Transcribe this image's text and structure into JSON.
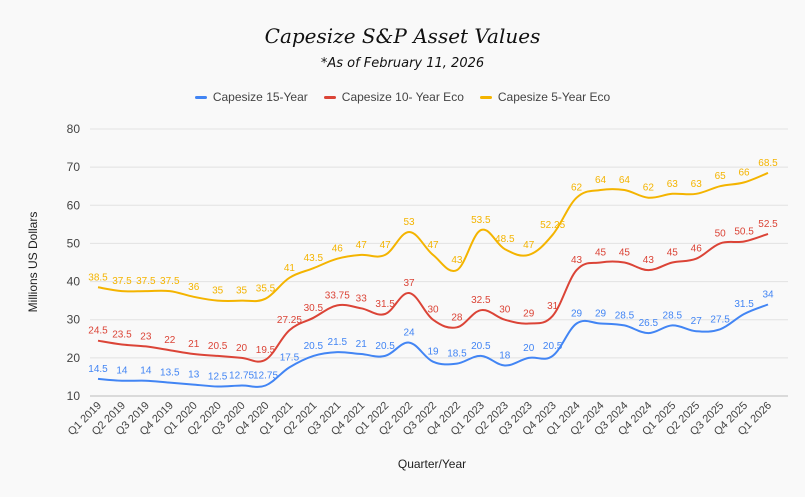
{
  "chart_data": {
    "type": "line",
    "title": "Capesize S&P Asset Values",
    "subtitle": "*As of February 11, 2026",
    "xlabel": "Quarter/Year",
    "ylabel": "Millions US Dollars",
    "ylim": [
      10,
      80
    ],
    "yticks": [
      10,
      20,
      30,
      40,
      50,
      60,
      70,
      80
    ],
    "grid": true,
    "legend": "top-center",
    "categories": [
      "Q1 2019",
      "Q2 2019",
      "Q3 2019",
      "Q4 2019",
      "Q1 2020",
      "Q2 2020",
      "Q3 2020",
      "Q4 2020",
      "Q1 2021",
      "Q2 2021",
      "Q3 2021",
      "Q4 2021",
      "Q1 2022",
      "Q2 2022",
      "Q3 2022",
      "Q4 2022",
      "Q1 2023",
      "Q2 2023",
      "Q3 2023",
      "Q4 2023",
      "Q1 2024",
      "Q2 2024",
      "Q3 2024",
      "Q4 2024",
      "Q1 2025",
      "Q2 2025",
      "Q3 2025",
      "Q4 2025",
      "Q1 2026"
    ],
    "series": [
      {
        "name": "Capesize 15-Year",
        "color": "#4285f4",
        "values": [
          14.5,
          14,
          14,
          13.5,
          13,
          12.5,
          12.75,
          12.75,
          17.5,
          20.5,
          21.5,
          21,
          20.5,
          24,
          19,
          18.5,
          20.5,
          18,
          20,
          20.5,
          29,
          29,
          28.5,
          26.5,
          28.5,
          27,
          27.5,
          31.5,
          34
        ],
        "labels": [
          "14.5",
          "14",
          "14",
          "13.5",
          "13",
          "12.5",
          "12.75",
          "12.75",
          "17.5",
          "20.5",
          "21.5",
          "21",
          "20.5",
          "24",
          "19",
          "18.5",
          "20.5",
          "18",
          "20",
          "20.5",
          "29",
          "29",
          "28.5",
          "26.5",
          "28.5",
          "27",
          "27.5",
          "31.5",
          "34"
        ]
      },
      {
        "name": "Capesize 10- Year Eco",
        "color": "#db4437",
        "values": [
          24.5,
          23.5,
          23,
          22,
          21,
          20.5,
          20,
          19.5,
          27.25,
          30.5,
          33.75,
          33,
          31.5,
          37,
          30,
          28,
          32.5,
          30,
          29,
          31,
          43,
          45,
          45,
          43,
          45,
          46,
          50,
          50.5,
          52.5
        ],
        "labels": [
          "24.5",
          "23.5",
          "23",
          "22",
          "21",
          "20.5",
          "20",
          "19.5",
          "27.25",
          "30.5",
          "33.75",
          "33",
          "31.5",
          "37",
          "30",
          "28",
          "32.5",
          "30",
          "29",
          "31",
          "43",
          "45",
          "45",
          "43",
          "45",
          "46",
          "50",
          "50.5",
          "52.5"
        ]
      },
      {
        "name": "Capesize 5-Year Eco",
        "color": "#f4b400",
        "values": [
          38.5,
          37.5,
          37.5,
          37.5,
          36,
          35,
          35,
          35.5,
          41,
          43.5,
          46,
          47,
          47,
          53,
          47,
          43,
          53.5,
          48.5,
          47,
          52.25,
          62,
          64,
          64,
          62,
          63,
          63,
          65,
          66,
          68.5
        ],
        "labels": [
          "38.5",
          "37.5",
          "37.5",
          "37.5",
          "36",
          "35",
          "35",
          "35.5",
          "41",
          "43.5",
          "46",
          "47",
          "47",
          "53",
          "47",
          "43",
          "53.5",
          "48.5",
          "47",
          "52.25",
          "62",
          "64",
          "64",
          "62",
          "63",
          "63",
          "65",
          "66",
          "68.5"
        ]
      }
    ]
  }
}
